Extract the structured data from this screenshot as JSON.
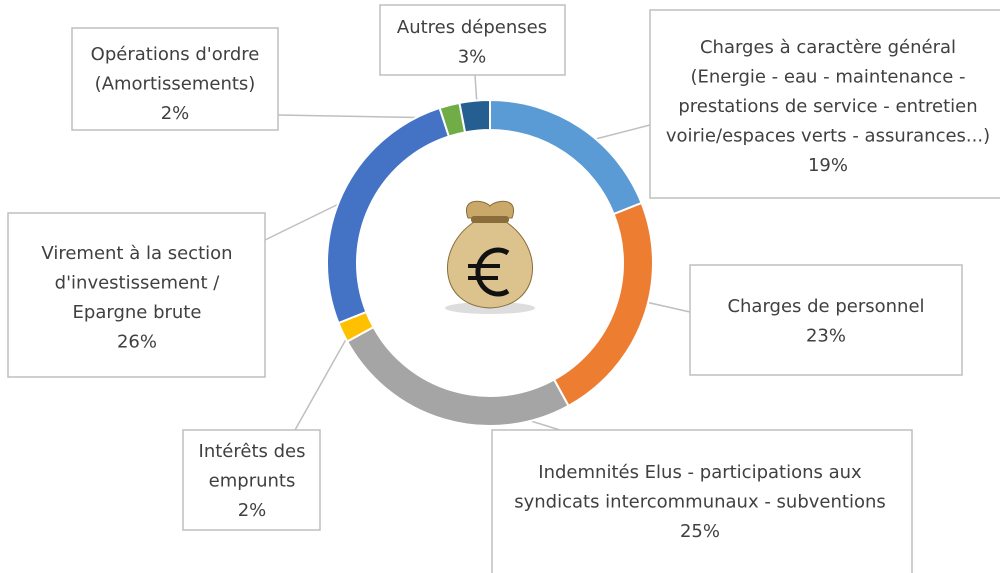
{
  "chart_data": {
    "type": "pie",
    "donut": true,
    "categories": [
      [
        "Charges à caractère  général",
        "(Energie - eau - maintenance -",
        "prestations de service - entretien",
        "voirie/espaces verts - assurances...)"
      ],
      [
        "Charges de personnel"
      ],
      [
        "Indemnités Elus - participations aux",
        "syndicats intercommunaux - subventions"
      ],
      [
        "Intérêts des",
        "emprunts"
      ],
      [
        "Virement à la section",
        "d'investissement /",
        "Epargne brute"
      ],
      [
        "Opérations d'ordre",
        "(Amortissements)"
      ],
      [
        "Autres dépenses"
      ]
    ],
    "values": [
      19,
      23,
      25,
      2,
      26,
      2,
      3
    ],
    "value_labels": [
      "19%",
      "23%",
      "25%",
      "2%",
      "26%",
      "2%",
      "3%"
    ],
    "colors": [
      "#5b9bd5",
      "#ed7d31",
      "#a5a5a5",
      "#ffc000",
      "#4472c4",
      "#70ad47",
      "#255e91"
    ]
  }
}
